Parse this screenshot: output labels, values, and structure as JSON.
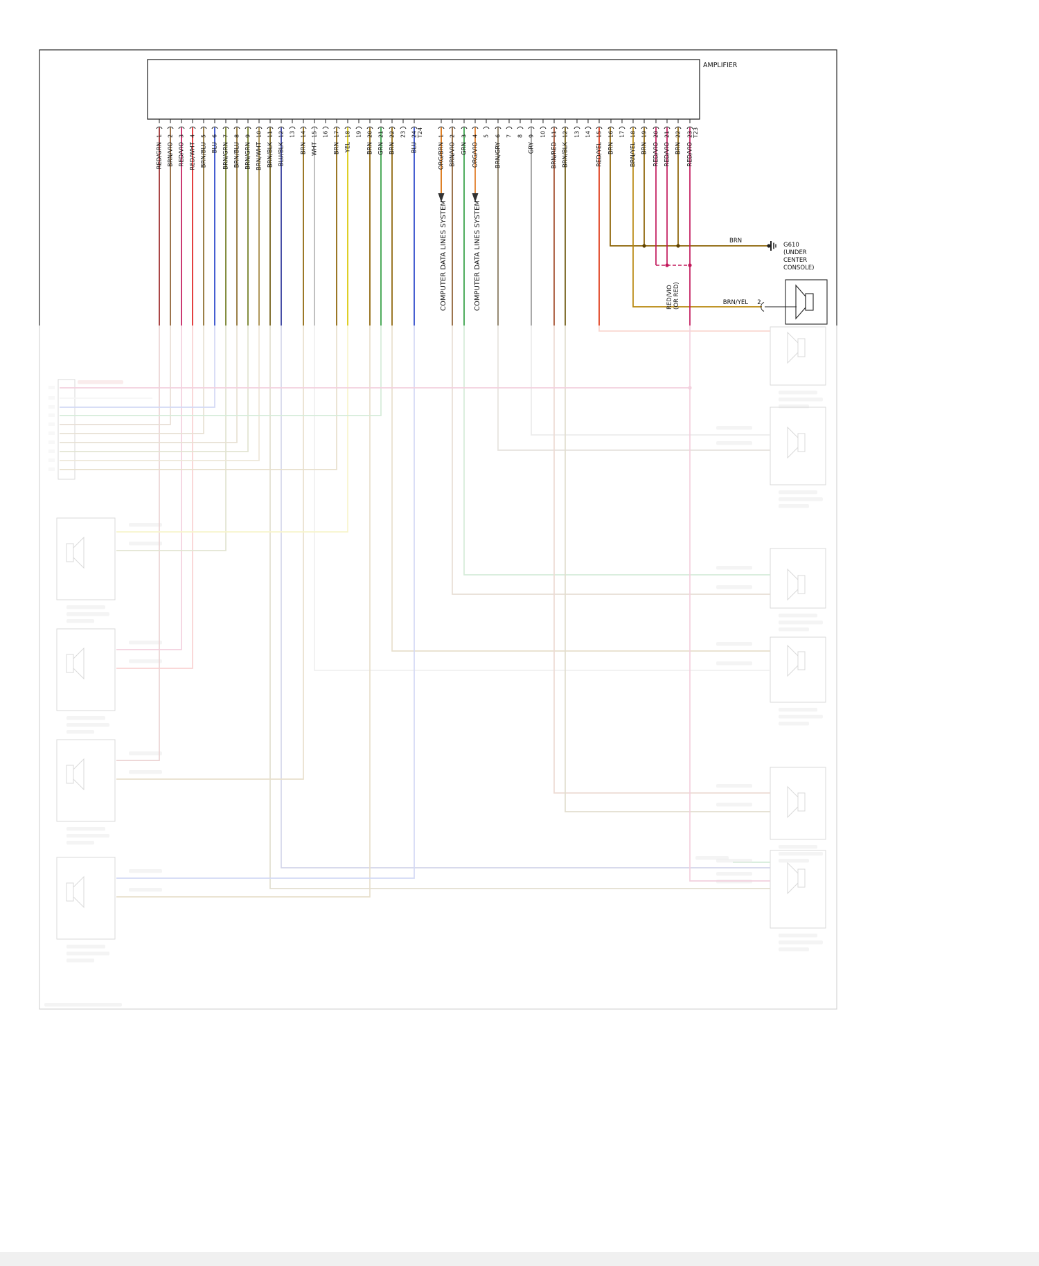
{
  "amplifier": {
    "label": "AMPLIFIER"
  },
  "connectors": {
    "t24": {
      "name": "T24",
      "pins": [
        {
          "n": 1,
          "label": "RED/GRN"
        },
        {
          "n": 2,
          "label": "BRN/VIO"
        },
        {
          "n": 3,
          "label": "RED/VIO"
        },
        {
          "n": 4,
          "label": "RED/WHT"
        },
        {
          "n": 5,
          "label": "BRN/BLU"
        },
        {
          "n": 6,
          "label": "BLU"
        },
        {
          "n": 7,
          "label": "BRN/GRN"
        },
        {
          "n": 8,
          "label": "BRN/BLU"
        },
        {
          "n": 9,
          "label": "BRN/GRN"
        },
        {
          "n": 10,
          "label": "BRN/WHT"
        },
        {
          "n": 11,
          "label": "BRN/BLK"
        },
        {
          "n": 12,
          "label": "BLU/BLK"
        },
        {
          "n": 13,
          "label": ""
        },
        {
          "n": 14,
          "label": "BRN"
        },
        {
          "n": 15,
          "label": "WHT"
        },
        {
          "n": 16,
          "label": ""
        },
        {
          "n": 17,
          "label": "BRN"
        },
        {
          "n": 18,
          "label": "YEL"
        },
        {
          "n": 19,
          "label": ""
        },
        {
          "n": 20,
          "label": "BRN"
        },
        {
          "n": 21,
          "label": "GRN"
        },
        {
          "n": 22,
          "label": "BRN"
        },
        {
          "n": 23,
          "label": ""
        },
        {
          "n": 24,
          "label": "BLU"
        }
      ]
    },
    "t23": {
      "name": "T23",
      "pins": [
        {
          "n": 1,
          "label": "ORG/BRN"
        },
        {
          "n": 2,
          "label": "BRN/VIO"
        },
        {
          "n": 3,
          "label": "GRN"
        },
        {
          "n": 4,
          "label": "ORG/VIO"
        },
        {
          "n": 5,
          "label": ""
        },
        {
          "n": 6,
          "label": "BRN/GRY"
        },
        {
          "n": 7,
          "label": ""
        },
        {
          "n": 8,
          "label": ""
        },
        {
          "n": 9,
          "label": "GRY"
        },
        {
          "n": 10,
          "label": ""
        },
        {
          "n": 11,
          "label": "BRN/RED"
        },
        {
          "n": 12,
          "label": "BRN/BLK"
        },
        {
          "n": 13,
          "label": ""
        },
        {
          "n": 14,
          "label": ""
        },
        {
          "n": 15,
          "label": "RED/YEL"
        },
        {
          "n": 16,
          "label": "BRN"
        },
        {
          "n": 17,
          "label": ""
        },
        {
          "n": 18,
          "label": "BRN/YEL"
        },
        {
          "n": 19,
          "label": "BRN"
        },
        {
          "n": 20,
          "label": "RED/VIO"
        },
        {
          "n": 21,
          "label": "RED/VIO"
        },
        {
          "n": 22,
          "label": "BRN"
        },
        {
          "n": 23,
          "label": "RED/VIO"
        }
      ]
    }
  },
  "annotations": {
    "computer_data_label": "COMPUTER DATA LINES SYSTEM",
    "ground_wire_color": "BRN",
    "ground_id": "G610",
    "ground_loc1": "(UNDER",
    "ground_loc2": "CENTER",
    "ground_loc3": "CONSOLE)",
    "redvio_line1": "RED/VIO",
    "redvio_line2": "(OR RED)",
    "speaker_wire_color": "BRN/YEL",
    "speaker_pin": "2"
  },
  "wire_colors": {
    "RED/GRN": "#9b2525",
    "BRN/VIO": "#8a5c2e",
    "RED/VIO": "#c2185b",
    "RED/WHT": "#e02020",
    "BRN/BLU": "#8a6a28",
    "BLU": "#2743c9",
    "BRN/GRN": "#6f7a1f",
    "BRN/WHT": "#a3873f",
    "BRN/BLK": "#6e5a10",
    "BLU/BLK": "#253096",
    "BRN": "#8a6000",
    "WHT": "#b5b5b5",
    "YEL": "#d9c700",
    "GRN": "#2f9e41",
    "ORG/BRN": "#d96a00",
    "ORG/VIO": "#e07820",
    "BRN/GRY": "#84755a",
    "GRY": "#9a9a9a",
    "BRN/RED": "#a34c2a",
    "RED/YEL": "#e03a18",
    "BRN/YEL": "#b8860b"
  }
}
